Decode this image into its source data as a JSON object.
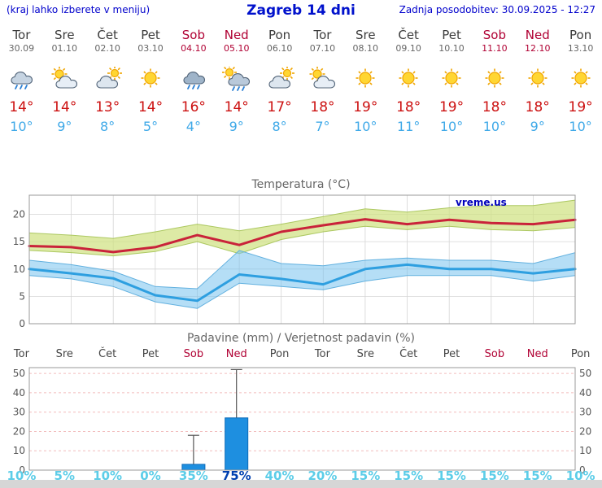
{
  "header": {
    "hint": "(kraj lahko izberete v meniju)",
    "title": "Zagreb 14 dni",
    "updated": "Zadnja posodobitev: 30.09.2025 - 12:27"
  },
  "colors": {
    "header_blue": "#0011cc",
    "weekend_red": "#b00033",
    "tmax_red": "#cc1111",
    "tmin_blue": "#3fa9e8",
    "bar_blue": "#1e8fe0",
    "prob_cyan": "#5ccde8",
    "prob_high_blue": "#0040b0",
    "watermark_blue": "#0000bb"
  },
  "days": [
    {
      "name": "Tor",
      "date": "30.09",
      "weekend": false,
      "icon": "rain",
      "tmax": "14°",
      "tmin": "10°"
    },
    {
      "name": "Sre",
      "date": "01.10",
      "weekend": false,
      "icon": "partly",
      "tmax": "14°",
      "tmin": "9°"
    },
    {
      "name": "Čet",
      "date": "02.10",
      "weekend": false,
      "icon": "mostly-cloudy",
      "tmax": "13°",
      "tmin": "8°"
    },
    {
      "name": "Pet",
      "date": "03.10",
      "weekend": false,
      "icon": "sun",
      "tmax": "14°",
      "tmin": "5°"
    },
    {
      "name": "Sob",
      "date": "04.10",
      "weekend": true,
      "icon": "rain-dark",
      "tmax": "16°",
      "tmin": "4°"
    },
    {
      "name": "Ned",
      "date": "05.10",
      "weekend": true,
      "icon": "rain-sun",
      "tmax": "14°",
      "tmin": "9°"
    },
    {
      "name": "Pon",
      "date": "06.10",
      "weekend": false,
      "icon": "mostly-cloudy",
      "tmax": "17°",
      "tmin": "8°"
    },
    {
      "name": "Tor",
      "date": "07.10",
      "weekend": false,
      "icon": "partly",
      "tmax": "18°",
      "tmin": "7°"
    },
    {
      "name": "Sre",
      "date": "08.10",
      "weekend": false,
      "icon": "sun",
      "tmax": "19°",
      "tmin": "10°"
    },
    {
      "name": "Čet",
      "date": "09.10",
      "weekend": false,
      "icon": "sun",
      "tmax": "18°",
      "tmin": "11°"
    },
    {
      "name": "Pet",
      "date": "10.10",
      "weekend": false,
      "icon": "sun",
      "tmax": "19°",
      "tmin": "10°"
    },
    {
      "name": "Sob",
      "date": "11.10",
      "weekend": true,
      "icon": "sun",
      "tmax": "18°",
      "tmin": "10°"
    },
    {
      "name": "Ned",
      "date": "12.10",
      "weekend": true,
      "icon": "sun",
      "tmax": "18°",
      "tmin": "9°"
    },
    {
      "name": "Pon",
      "date": "13.10",
      "weekend": false,
      "icon": "sun",
      "tmax": "19°",
      "tmin": "10°"
    }
  ],
  "chart_data": [
    {
      "type": "area",
      "title": "Temperatura (°C)",
      "watermark": "vreme.us",
      "categories": [
        "Tor",
        "Sre",
        "Čet",
        "Pet",
        "Sob",
        "Ned",
        "Pon",
        "Tor",
        "Sre",
        "Čet",
        "Pet",
        "Sob",
        "Ned",
        "Pon"
      ],
      "ylim": [
        0,
        23.5
      ],
      "yticks": [
        0,
        5,
        10,
        15,
        20
      ],
      "grid": true,
      "legend": "none",
      "series": [
        {
          "name": "tmax",
          "color": "#c9233a",
          "values": [
            14.2,
            14.0,
            13.1,
            14.0,
            16.2,
            14.4,
            16.8,
            18.0,
            19.1,
            18.2,
            19.0,
            18.4,
            18.2,
            19.0
          ]
        },
        {
          "name": "tmin",
          "color": "#2e9fe0",
          "values": [
            10.0,
            9.2,
            8.3,
            5.2,
            4.2,
            9.0,
            8.2,
            7.2,
            10.0,
            10.8,
            10.0,
            10.0,
            9.2,
            10.0
          ]
        },
        {
          "name": "tmax_band_upper",
          "color": "#d2e482",
          "values": [
            16.6,
            16.2,
            15.6,
            16.8,
            18.2,
            17.0,
            18.2,
            19.6,
            21.0,
            20.4,
            21.2,
            21.6,
            21.6,
            22.6
          ]
        },
        {
          "name": "tmax_band_lower",
          "color": "#d2e482",
          "values": [
            13.4,
            13.0,
            12.4,
            13.2,
            15.0,
            12.8,
            15.4,
            16.8,
            17.8,
            17.2,
            17.8,
            17.2,
            17.0,
            17.6
          ]
        },
        {
          "name": "tmin_band_upper",
          "color": "#7dc8f0",
          "values": [
            11.6,
            10.8,
            9.6,
            6.8,
            6.4,
            13.4,
            11.0,
            10.6,
            11.6,
            12.0,
            11.6,
            11.6,
            11.0,
            13.0
          ]
        },
        {
          "name": "tmin_band_lower",
          "color": "#7dc8f0",
          "values": [
            8.8,
            8.2,
            6.8,
            4.0,
            2.8,
            7.4,
            6.8,
            6.2,
            7.8,
            8.8,
            8.8,
            8.8,
            7.8,
            8.8
          ]
        }
      ]
    },
    {
      "type": "bar",
      "title": "Padavine (mm) / Verjetnost padavin (%)",
      "categories": [
        "Tor",
        "Sre",
        "Čet",
        "Pet",
        "Sob",
        "Ned",
        "Pon",
        "Tor",
        "Sre",
        "Čet",
        "Pet",
        "Sob",
        "Ned",
        "Pon"
      ],
      "weekend": [
        false,
        false,
        false,
        false,
        true,
        true,
        false,
        false,
        false,
        false,
        false,
        true,
        true,
        false
      ],
      "values_mm": [
        0,
        0,
        0,
        0,
        3,
        27,
        0,
        0,
        0,
        0,
        0,
        0,
        0,
        0
      ],
      "whisker_max_mm": [
        0,
        0,
        0,
        0,
        18,
        52,
        0,
        0,
        0,
        0,
        0,
        0,
        0,
        0
      ],
      "probability_pct": [
        10,
        5,
        10,
        0,
        35,
        75,
        40,
        20,
        15,
        15,
        15,
        15,
        15,
        10
      ],
      "probability_labels": [
        "10%",
        "5%",
        "10%",
        "0%",
        "35%",
        "75%",
        "40%",
        "20%",
        "15%",
        "15%",
        "15%",
        "15%",
        "15%",
        "10%"
      ],
      "ylim": [
        0,
        53
      ],
      "yticks": [
        0,
        10,
        20,
        30,
        40,
        50
      ],
      "grid": true,
      "legend": "none"
    }
  ]
}
